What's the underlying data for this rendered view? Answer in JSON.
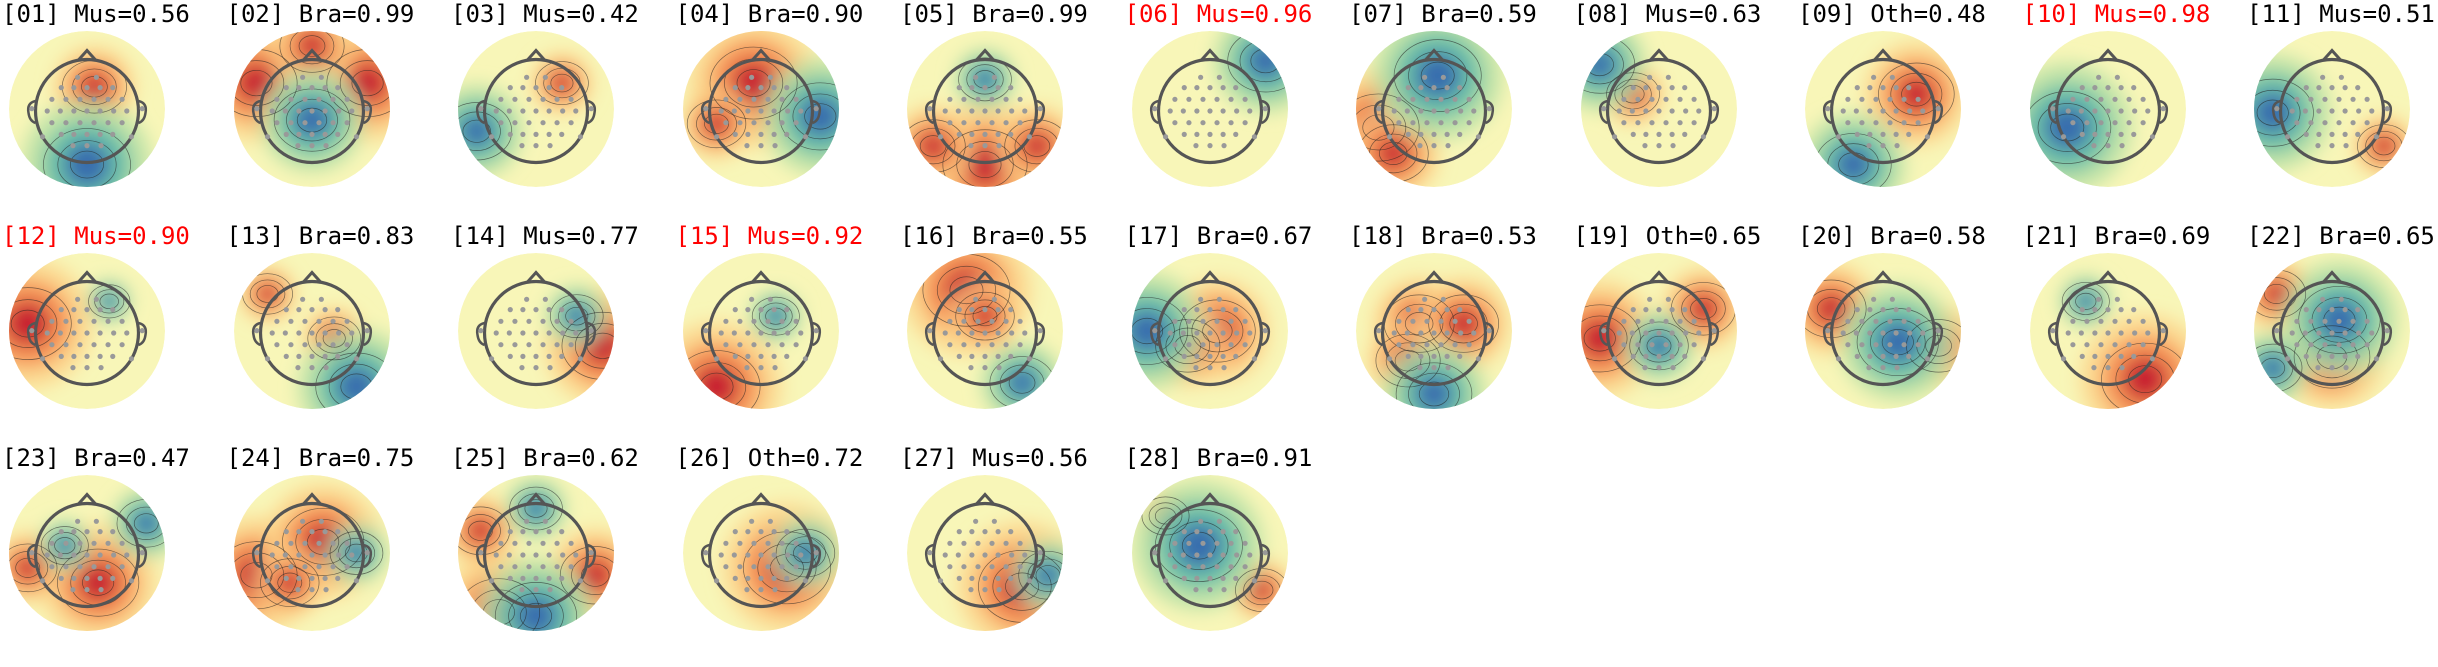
{
  "components": [
    {
      "index": "01",
      "label": "Mus",
      "prob": "0.56",
      "flagged": false,
      "hot": [
        [
          0.1,
          -0.3,
          0.6
        ]
      ],
      "cold": [
        [
          0.0,
          0.75,
          1.0
        ]
      ]
    },
    {
      "index": "02",
      "label": "Bra",
      "prob": "0.99",
      "flagged": false,
      "hot": [
        [
          -0.75,
          -0.35,
          0.9
        ],
        [
          0.75,
          -0.35,
          0.9
        ],
        [
          0,
          -0.85,
          0.6
        ]
      ],
      "cold": [
        [
          0.0,
          0.15,
          0.8
        ]
      ]
    },
    {
      "index": "03",
      "label": "Mus",
      "prob": "0.42",
      "flagged": false,
      "hot": [
        [
          0.35,
          -0.35,
          0.4
        ]
      ],
      "cold": [
        [
          -0.8,
          0.3,
          0.7
        ]
      ]
    },
    {
      "index": "04",
      "label": "Bra",
      "prob": "0.90",
      "flagged": false,
      "hot": [
        [
          -0.1,
          -0.35,
          1.0
        ],
        [
          -0.6,
          0.2,
          0.5
        ]
      ],
      "cold": [
        [
          0.8,
          0.1,
          0.9
        ]
      ]
    },
    {
      "index": "05",
      "label": "Bra",
      "prob": "0.99",
      "flagged": false,
      "hot": [
        [
          0.0,
          0.75,
          0.95
        ],
        [
          -0.7,
          0.5,
          0.6
        ],
        [
          0.7,
          0.5,
          0.6
        ]
      ],
      "cold": [
        [
          0.0,
          -0.4,
          0.4
        ]
      ]
    },
    {
      "index": "06",
      "label": "Mus",
      "prob": "0.96",
      "flagged": true,
      "hot": [],
      "cold": [
        [
          0.75,
          -0.65,
          0.8
        ]
      ]
    },
    {
      "index": "07",
      "label": "Bra",
      "prob": "0.59",
      "flagged": false,
      "hot": [
        [
          -0.75,
          0.25,
          0.9
        ],
        [
          -0.55,
          0.6,
          0.7
        ]
      ],
      "cold": [
        [
          0.05,
          -0.45,
          1.0
        ]
      ]
    },
    {
      "index": "08",
      "label": "Mus",
      "prob": "0.63",
      "flagged": false,
      "hot": [
        [
          -0.35,
          -0.2,
          0.4
        ]
      ],
      "cold": [
        [
          -0.8,
          -0.6,
          0.7
        ]
      ]
    },
    {
      "index": "09",
      "label": "Oth",
      "prob": "0.48",
      "flagged": false,
      "hot": [
        [
          0.45,
          -0.2,
          0.8
        ]
      ],
      "cold": [
        [
          -0.4,
          0.75,
          0.8
        ]
      ]
    },
    {
      "index": "10",
      "label": "Mus",
      "prob": "0.98",
      "flagged": true,
      "hot": [],
      "cold": [
        [
          -0.55,
          0.25,
          1.0
        ]
      ]
    },
    {
      "index": "11",
      "label": "Mus",
      "prob": "0.51",
      "flagged": false,
      "hot": [
        [
          0.7,
          0.5,
          0.4
        ]
      ],
      "cold": [
        [
          -0.8,
          0.05,
          0.9
        ]
      ]
    },
    {
      "index": "12",
      "label": "Mus",
      "prob": "0.90",
      "flagged": true,
      "hot": [
        [
          -0.8,
          -0.1,
          1.0
        ]
      ],
      "cold": [
        [
          0.3,
          -0.4,
          0.2
        ]
      ]
    },
    {
      "index": "13",
      "label": "Bra",
      "prob": "0.83",
      "flagged": false,
      "hot": [
        [
          0.3,
          0.1,
          0.4
        ],
        [
          -0.6,
          -0.5,
          0.35
        ]
      ],
      "cold": [
        [
          0.6,
          0.75,
          0.9
        ]
      ]
    },
    {
      "index": "14",
      "label": "Mus",
      "prob": "0.77",
      "flagged": false,
      "hot": [
        [
          0.9,
          0.2,
          0.9
        ]
      ],
      "cold": [
        [
          0.55,
          -0.2,
          0.4
        ]
      ]
    },
    {
      "index": "15",
      "label": "Mus",
      "prob": "0.92",
      "flagged": true,
      "hot": [
        [
          -0.6,
          0.75,
          1.0
        ]
      ],
      "cold": [
        [
          0.2,
          -0.2,
          0.3
        ]
      ]
    },
    {
      "index": "16",
      "label": "Bra",
      "prob": "0.55",
      "flagged": false,
      "hot": [
        [
          -0.25,
          -0.55,
          1.0
        ],
        [
          0.0,
          -0.2,
          0.5
        ]
      ],
      "cold": [
        [
          0.5,
          0.7,
          0.6
        ]
      ]
    },
    {
      "index": "17",
      "label": "Bra",
      "prob": "0.67",
      "flagged": false,
      "hot": [
        [
          0.1,
          0.0,
          0.8
        ],
        [
          -0.3,
          0.2,
          0.6
        ]
      ],
      "cold": [
        [
          -0.85,
          0.0,
          0.9
        ]
      ]
    },
    {
      "index": "18",
      "label": "Bra",
      "prob": "0.53",
      "flagged": false,
      "hot": [
        [
          -0.2,
          -0.1,
          0.7
        ],
        [
          0.4,
          -0.1,
          0.7
        ],
        [
          -0.35,
          0.4,
          0.6
        ]
      ],
      "cold": [
        [
          0.0,
          0.85,
          0.8
        ]
      ]
    },
    {
      "index": "19",
      "label": "Oth",
      "prob": "0.65",
      "flagged": false,
      "hot": [
        [
          -0.8,
          0.1,
          0.9
        ],
        [
          0.6,
          -0.3,
          0.6
        ]
      ],
      "cold": [
        [
          0.0,
          0.2,
          0.5
        ]
      ]
    },
    {
      "index": "20",
      "label": "Bra",
      "prob": "0.58",
      "flagged": false,
      "hot": [
        [
          -0.7,
          -0.3,
          0.7
        ],
        [
          0.75,
          0.2,
          0.6
        ]
      ],
      "cold": [
        [
          0.2,
          0.15,
          0.9
        ]
      ]
    },
    {
      "index": "21",
      "label": "Bra",
      "prob": "0.69",
      "flagged": false,
      "hot": [
        [
          0.5,
          0.65,
          1.0
        ]
      ],
      "cold": [
        [
          -0.3,
          -0.4,
          0.3
        ]
      ]
    },
    {
      "index": "22",
      "label": "Bra",
      "prob": "0.65",
      "flagged": false,
      "hot": [
        [
          0.0,
          0.35,
          0.8
        ],
        [
          -0.75,
          -0.5,
          0.5
        ]
      ],
      "cold": [
        [
          0.1,
          -0.15,
          0.9
        ],
        [
          -0.8,
          0.5,
          0.5
        ]
      ]
    },
    {
      "index": "23",
      "label": "Bra",
      "prob": "0.47",
      "flagged": false,
      "hot": [
        [
          0.15,
          0.4,
          0.9
        ],
        [
          -0.8,
          0.2,
          0.5
        ]
      ],
      "cold": [
        [
          0.8,
          -0.4,
          0.5
        ],
        [
          -0.3,
          -0.1,
          0.3
        ]
      ]
    },
    {
      "index": "24",
      "label": "Bra",
      "prob": "0.75",
      "flagged": false,
      "hot": [
        [
          -0.75,
          0.3,
          0.9
        ],
        [
          0.15,
          -0.15,
          0.9
        ],
        [
          -0.3,
          0.4,
          0.5
        ]
      ],
      "cold": [
        [
          0.6,
          0.0,
          0.4
        ]
      ]
    },
    {
      "index": "25",
      "label": "Bra",
      "prob": "0.62",
      "flagged": false,
      "hot": [
        [
          -0.5,
          0.8,
          0.9
        ],
        [
          0.8,
          0.3,
          0.7
        ],
        [
          -0.75,
          -0.3,
          0.5
        ]
      ],
      "cold": [
        [
          0.0,
          0.85,
          0.9
        ],
        [
          0.0,
          -0.6,
          0.4
        ]
      ]
    },
    {
      "index": "26",
      "label": "Oth",
      "prob": "0.72",
      "flagged": false,
      "hot": [
        [
          0.35,
          0.2,
          1.0
        ]
      ],
      "cold": [
        [
          0.6,
          0.0,
          0.5
        ]
      ]
    },
    {
      "index": "27",
      "label": "Mus",
      "prob": "0.56",
      "flagged": false,
      "hot": [
        [
          0.5,
          0.45,
          1.0
        ]
      ],
      "cold": [
        [
          0.85,
          0.3,
          0.5
        ]
      ]
    },
    {
      "index": "28",
      "label": "Bra",
      "prob": "0.91",
      "flagged": false,
      "hot": [
        [
          0.7,
          0.5,
          0.4
        ],
        [
          -0.6,
          -0.5,
          0.3
        ]
      ],
      "cold": [
        [
          -0.15,
          -0.1,
          1.0
        ]
      ]
    }
  ],
  "colors": {
    "flagged_title": "#ff0000",
    "normal_title": "#000000",
    "head_outline": "#555555",
    "electrode": "#999999",
    "hot": "#c2122e",
    "cold": "#2f5fb0",
    "neutral": "#f8f6b8"
  }
}
